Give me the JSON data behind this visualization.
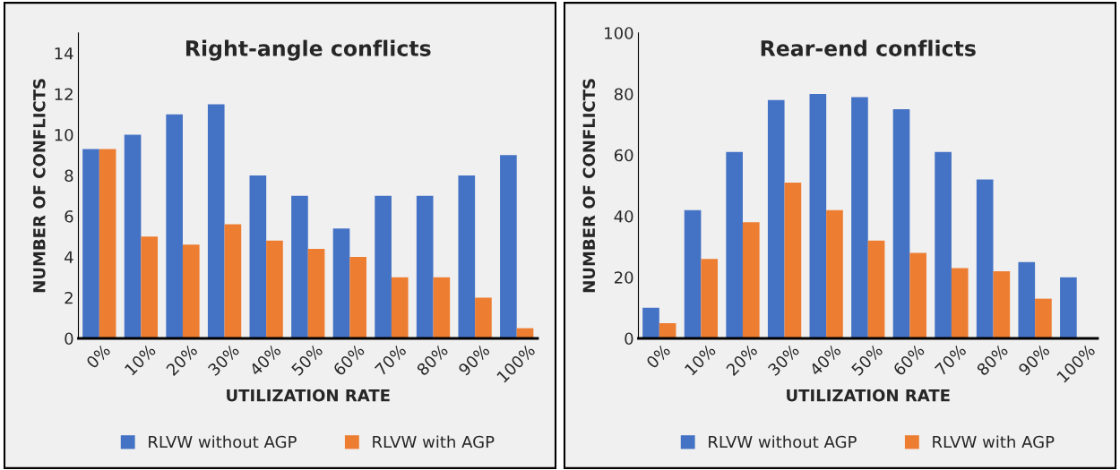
{
  "chart_data": [
    {
      "type": "bar",
      "title": "Right-angle conflicts",
      "xlabel": "UTILIZATION RATE",
      "ylabel": "NUMBER OF CONFLICTS",
      "categories": [
        "0%",
        "10%",
        "20%",
        "30%",
        "40%",
        "50%",
        "60%",
        "70%",
        "80%",
        "90%",
        "100%"
      ],
      "series": [
        {
          "name": "RLVW without AGP",
          "color": "#4472c4",
          "values": [
            9.3,
            10,
            11,
            11.5,
            8,
            7,
            5.4,
            7,
            7,
            8,
            9
          ]
        },
        {
          "name": "RLVW with AGP",
          "color": "#ed7d31",
          "values": [
            9.3,
            5,
            4.6,
            5.6,
            4.8,
            4.4,
            4,
            3,
            3,
            2,
            0.5
          ]
        }
      ],
      "ylim": [
        0,
        15
      ],
      "yticks": [
        0,
        2,
        4,
        6,
        8,
        10,
        12,
        14
      ],
      "grid": false,
      "legend": "bottom"
    },
    {
      "type": "bar",
      "title": "Rear-end conflicts",
      "xlabel": "UTILIZATION RATE",
      "ylabel": "NUMBER OF CONFLICTS",
      "categories": [
        "0%",
        "10%",
        "20%",
        "30%",
        "40%",
        "50%",
        "60%",
        "70%",
        "80%",
        "90%",
        "100%"
      ],
      "series": [
        {
          "name": "RLVW without AGP",
          "color": "#4472c4",
          "values": [
            10,
            42,
            61,
            78,
            80,
            79,
            75,
            61,
            52,
            25,
            20
          ]
        },
        {
          "name": "RLVW with AGP",
          "color": "#ed7d31",
          "values": [
            5,
            26,
            38,
            51,
            42,
            32,
            28,
            23,
            22,
            13,
            null
          ]
        }
      ],
      "ylim": [
        0,
        100
      ],
      "yticks": [
        0,
        20,
        40,
        60,
        80,
        100
      ],
      "grid": false,
      "legend": "bottom"
    }
  ]
}
